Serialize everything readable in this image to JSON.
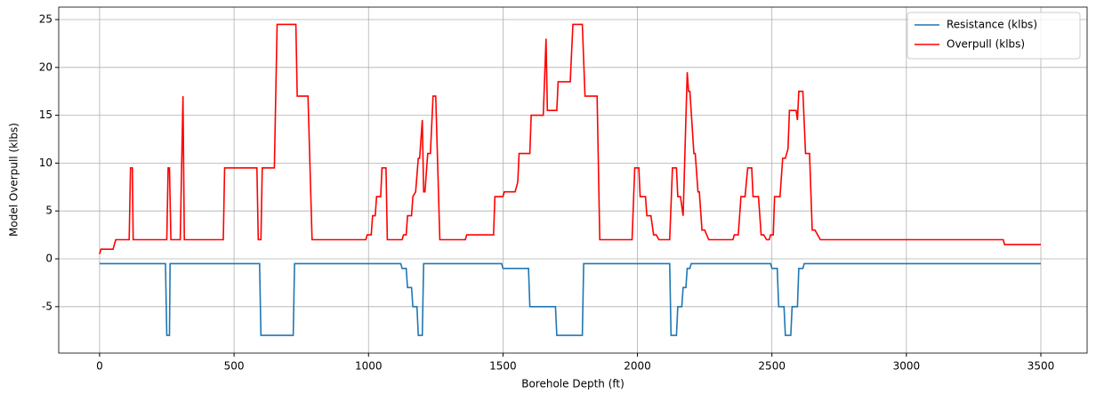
{
  "chart_data": {
    "type": "line",
    "xlabel": "Borehole Depth (ft)",
    "ylabel": "Model Overpull (klbs)",
    "xlim": [
      -152,
      3672
    ],
    "ylim": [
      -9.85,
      26.3
    ],
    "xticks": [
      0,
      500,
      1000,
      1500,
      2000,
      2500,
      3000,
      3500
    ],
    "yticks": [
      -5,
      0,
      5,
      10,
      15,
      20,
      25
    ],
    "grid": true,
    "legend": "upper right",
    "series": [
      {
        "name": "Resistance (klbs)",
        "color": "#1f77b4",
        "x": [
          0,
          245,
          250,
          260,
          262,
          595,
          600,
          720,
          725,
          1120,
          1125,
          1140,
          1145,
          1160,
          1165,
          1180,
          1185,
          1200,
          1205,
          1495,
          1500,
          1595,
          1600,
          1695,
          1700,
          1795,
          1800,
          2120,
          2125,
          2145,
          2150,
          2165,
          2170,
          2180,
          2185,
          2195,
          2200,
          2495,
          2500,
          2520,
          2525,
          2545,
          2550,
          2570,
          2575,
          2595,
          2600,
          2615,
          2620,
          3500
        ],
        "values": [
          -0.5,
          -0.5,
          -8,
          -8,
          -0.5,
          -0.5,
          -8,
          -8,
          -0.5,
          -0.5,
          -1,
          -1,
          -3,
          -3,
          -5,
          -5,
          -8,
          -8,
          -0.5,
          -0.5,
          -1,
          -1,
          -5,
          -5,
          -8,
          -8,
          -0.5,
          -0.5,
          -8,
          -8,
          -5,
          -5,
          -3,
          -3,
          -1,
          -1,
          -0.5,
          -0.5,
          -1,
          -1,
          -5,
          -5,
          -8,
          -8,
          -5,
          -5,
          -1,
          -1,
          -0.5,
          -0.5
        ]
      },
      {
        "name": "Overpull (klbs)",
        "color": "#ff0000",
        "x": [
          0,
          5,
          50,
          60,
          110,
          115,
          122,
          125,
          250,
          255,
          260,
          265,
          300,
          310,
          315,
          460,
          465,
          585,
          590,
          600,
          605,
          650,
          660,
          730,
          735,
          775,
          790,
          990,
          995,
          1010,
          1015,
          1025,
          1030,
          1045,
          1050,
          1065,
          1070,
          1125,
          1130,
          1140,
          1145,
          1160,
          1165,
          1175,
          1185,
          1190,
          1200,
          1205,
          1210,
          1220,
          1230,
          1240,
          1250,
          1265,
          1360,
          1365,
          1465,
          1470,
          1500,
          1505,
          1545,
          1555,
          1560,
          1600,
          1605,
          1650,
          1660,
          1665,
          1700,
          1705,
          1750,
          1760,
          1795,
          1805,
          1850,
          1860,
          1980,
          1990,
          2005,
          2010,
          2030,
          2035,
          2050,
          2060,
          2070,
          2080,
          2120,
          2130,
          2145,
          2150,
          2160,
          2170,
          2185,
          2190,
          2195,
          2210,
          2215,
          2225,
          2230,
          2240,
          2250,
          2265,
          2355,
          2360,
          2375,
          2385,
          2400,
          2410,
          2425,
          2430,
          2450,
          2460,
          2470,
          2480,
          2490,
          2495,
          2505,
          2510,
          2530,
          2540,
          2550,
          2560,
          2565,
          2590,
          2595,
          2600,
          2615,
          2625,
          2640,
          2650,
          2660,
          2680,
          3360,
          3365,
          3500
        ],
        "values": [
          0.5,
          1,
          1,
          2,
          2,
          9.5,
          9.5,
          2,
          2,
          9.5,
          9.5,
          2,
          2,
          17,
          2,
          2,
          9.5,
          9.5,
          2,
          2,
          9.5,
          9.5,
          24.5,
          24.5,
          17,
          17,
          2,
          2,
          2.5,
          2.5,
          4.5,
          4.5,
          6.5,
          6.5,
          9.5,
          9.5,
          2,
          2,
          2.5,
          2.5,
          4.5,
          4.5,
          6.5,
          7,
          10.5,
          10.5,
          14.5,
          7,
          7,
          11,
          11,
          17,
          17,
          2,
          2,
          2.5,
          2.5,
          6.5,
          6.5,
          7,
          7,
          8,
          11,
          11,
          15,
          15,
          23,
          15.5,
          15.5,
          18.5,
          18.5,
          24.5,
          24.5,
          17,
          17,
          2,
          2,
          9.5,
          9.5,
          6.5,
          6.5,
          4.5,
          4.5,
          2.5,
          2.5,
          2,
          2,
          9.5,
          9.5,
          6.5,
          6.5,
          4.5,
          19.5,
          17.5,
          17.5,
          11,
          11,
          7,
          7,
          3,
          3,
          2,
          2,
          2.5,
          2.5,
          6.5,
          6.5,
          9.5,
          9.5,
          6.5,
          6.5,
          2.5,
          2.5,
          2,
          2,
          2.5,
          2.5,
          6.5,
          6.5,
          10.5,
          10.5,
          11.5,
          15.5,
          15.5,
          14.5,
          17.5,
          17.5,
          11,
          11,
          3,
          3,
          2,
          2,
          1.5,
          1.5
        ]
      }
    ]
  }
}
